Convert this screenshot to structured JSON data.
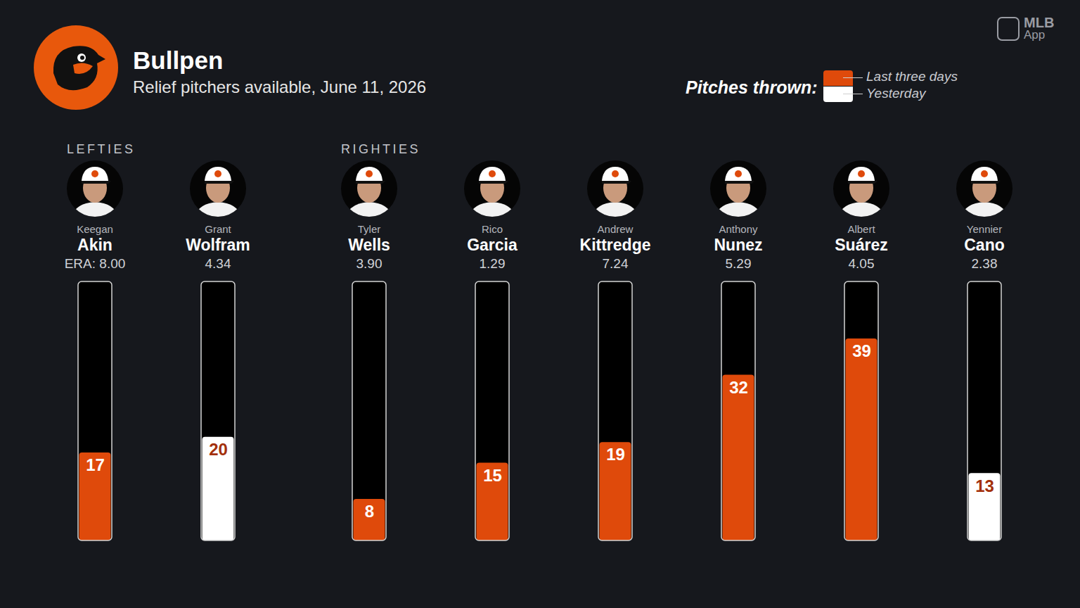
{
  "chart_data": {
    "type": "bar",
    "title": "Bullpen",
    "subtitle": "Relief pitchers available, June 11, 2026",
    "legend_title": "Pitches thrown:",
    "brand_lines": [
      "MLB",
      "App"
    ],
    "groups": [
      {
        "name": "LEFTIES",
        "members": [
          "Akin",
          "Wolfram"
        ]
      },
      {
        "name": "RIGHTIES",
        "members": [
          "Wells",
          "Garcia",
          "Kittredge",
          "Nunez",
          "Suárez",
          "Cano"
        ]
      }
    ],
    "categories": [
      "Akin",
      "Wolfram",
      "Wells",
      "Garcia",
      "Kittredge",
      "Nunez",
      "Suárez",
      "Cano"
    ],
    "first_names": [
      "Keegan",
      "Grant",
      "Tyler",
      "Rico",
      "Andrew",
      "Anthony",
      "Albert",
      "Yennier"
    ],
    "era_labels": [
      "ERA: 8.00",
      "4.34",
      "3.90",
      "1.29",
      "7.24",
      "5.29",
      "4.05",
      "2.38"
    ],
    "series": [
      {
        "name": "Last three days",
        "color": "#df4a0b",
        "values": [
          17,
          null,
          8,
          15,
          19,
          32,
          39,
          null
        ]
      },
      {
        "name": "Yesterday",
        "color": "#ffffff",
        "values": [
          null,
          20,
          null,
          null,
          null,
          null,
          null,
          13
        ]
      }
    ],
    "stacked": true,
    "ylim": [
      0,
      50
    ],
    "tick_labels": false,
    "grid": false,
    "data_labels": true,
    "legend": "top-right"
  }
}
